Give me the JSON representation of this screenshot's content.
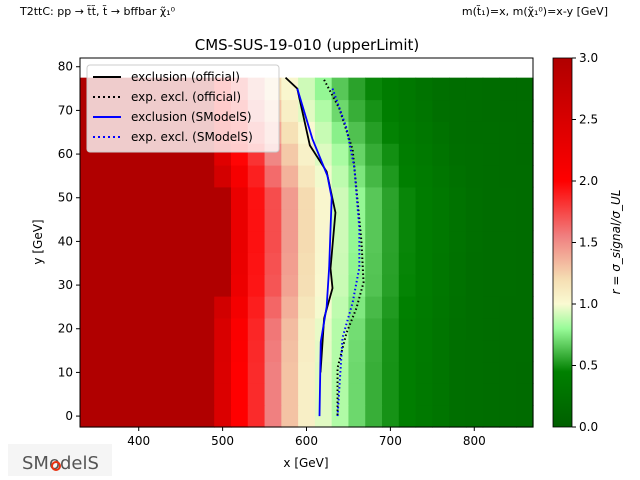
{
  "header": {
    "left_label": "T2ttC: pp → t̃t̃, t̃ → bffbar χ̃₁⁰",
    "right_label": "m(t̃₁)=x, m(χ̃₁⁰)=x-y [GeV]"
  },
  "logo_text": "SModelS",
  "chart_data": {
    "type": "heatmap",
    "title": "CMS-SUS-19-010 (upperLimit)",
    "xlabel": "x [GeV]",
    "ylabel": "y [GeV]",
    "xlim": [
      330,
      870
    ],
    "ylim": [
      -2.5,
      82
    ],
    "xticks": [
      400,
      500,
      600,
      700,
      800
    ],
    "yticks": [
      0,
      10,
      20,
      30,
      40,
      50,
      60,
      70,
      80
    ],
    "grid": false,
    "heatmap": {
      "x_edges_start": 330,
      "x_cell_boundaries": [
        330,
        490,
        510,
        530,
        550,
        570,
        590,
        610,
        630,
        650,
        670,
        690,
        710,
        730,
        750,
        770,
        790,
        810,
        830,
        850,
        870
      ],
      "y_cell_step": 5,
      "y_range": [
        -2.5,
        77.5
      ],
      "r_by_column_at_baseline": [
        3.0,
        2.45,
        2.0,
        1.85,
        1.55,
        1.3,
        1.08,
        0.95,
        0.85,
        0.7,
        0.58,
        0.5,
        0.42,
        0.36,
        0.3,
        0.22,
        0.2,
        0.19,
        0.18,
        0.17
      ],
      "baseline_contour_x": 620,
      "contour_x_by_y": [
        [
          0,
          620
        ],
        [
          10,
          620
        ],
        [
          20,
          622
        ],
        [
          30,
          630
        ],
        [
          40,
          632
        ],
        [
          50,
          632
        ],
        [
          60,
          618
        ],
        [
          70,
          600
        ],
        [
          77.5,
          588
        ]
      ]
    },
    "colorbar": {
      "label": "r = σ_signal/σ_UL",
      "range": [
        0,
        3
      ],
      "ticks": [
        "0.0",
        "0.5",
        "1.0",
        "1.5",
        "2.0",
        "2.5",
        "3.0"
      ],
      "stops": [
        [
          0,
          "#005f00"
        ],
        [
          0.45,
          "#008000"
        ],
        [
          0.8,
          "#98fb98"
        ],
        [
          1.0,
          "#fafad2"
        ],
        [
          1.2,
          "#f5deb3"
        ],
        [
          1.55,
          "#f08080"
        ],
        [
          2.0,
          "#ff0000"
        ],
        [
          3.0,
          "#b00000"
        ]
      ]
    },
    "series": [
      {
        "name": "exclusion (official)",
        "color": "#000000",
        "style": "solid",
        "points": [
          [
            575,
            77.5
          ],
          [
            589,
            75
          ],
          [
            604,
            62
          ],
          [
            624,
            56
          ],
          [
            634.5,
            46.6
          ],
          [
            628.6,
            33.8
          ],
          [
            631,
            29.3
          ],
          [
            621,
            22.4
          ],
          [
            616.7,
            10
          ]
        ]
      },
      {
        "name": "exp. excl. (official)",
        "color": "#000000",
        "style": "dotted",
        "points": [
          [
            621,
            77
          ],
          [
            639,
            70.5
          ],
          [
            655,
            61
          ],
          [
            659.5,
            52
          ],
          [
            665.5,
            40
          ],
          [
            668,
            30.6
          ],
          [
            659.5,
            24.7
          ],
          [
            647.6,
            19
          ],
          [
            637,
            11
          ],
          [
            637,
            0
          ]
        ]
      },
      {
        "name": "exclusion (SModelS)",
        "color": "#0000ff",
        "style": "solid",
        "points": [
          [
            589,
            75
          ],
          [
            607,
            63.5
          ],
          [
            625,
            55
          ],
          [
            630,
            50
          ],
          [
            627,
            34
          ],
          [
            624,
            25
          ],
          [
            617,
            17
          ],
          [
            615.5,
            0
          ]
        ]
      },
      {
        "name": "exp. excl. (SModelS)",
        "color": "#0000ff",
        "style": "dotted",
        "points": [
          [
            631,
            75
          ],
          [
            647.6,
            66
          ],
          [
            657,
            57
          ],
          [
            663,
            43
          ],
          [
            663,
            34
          ],
          [
            655,
            26
          ],
          [
            643,
            18
          ],
          [
            637,
            0
          ]
        ]
      }
    ],
    "legend_position": "top-left"
  }
}
